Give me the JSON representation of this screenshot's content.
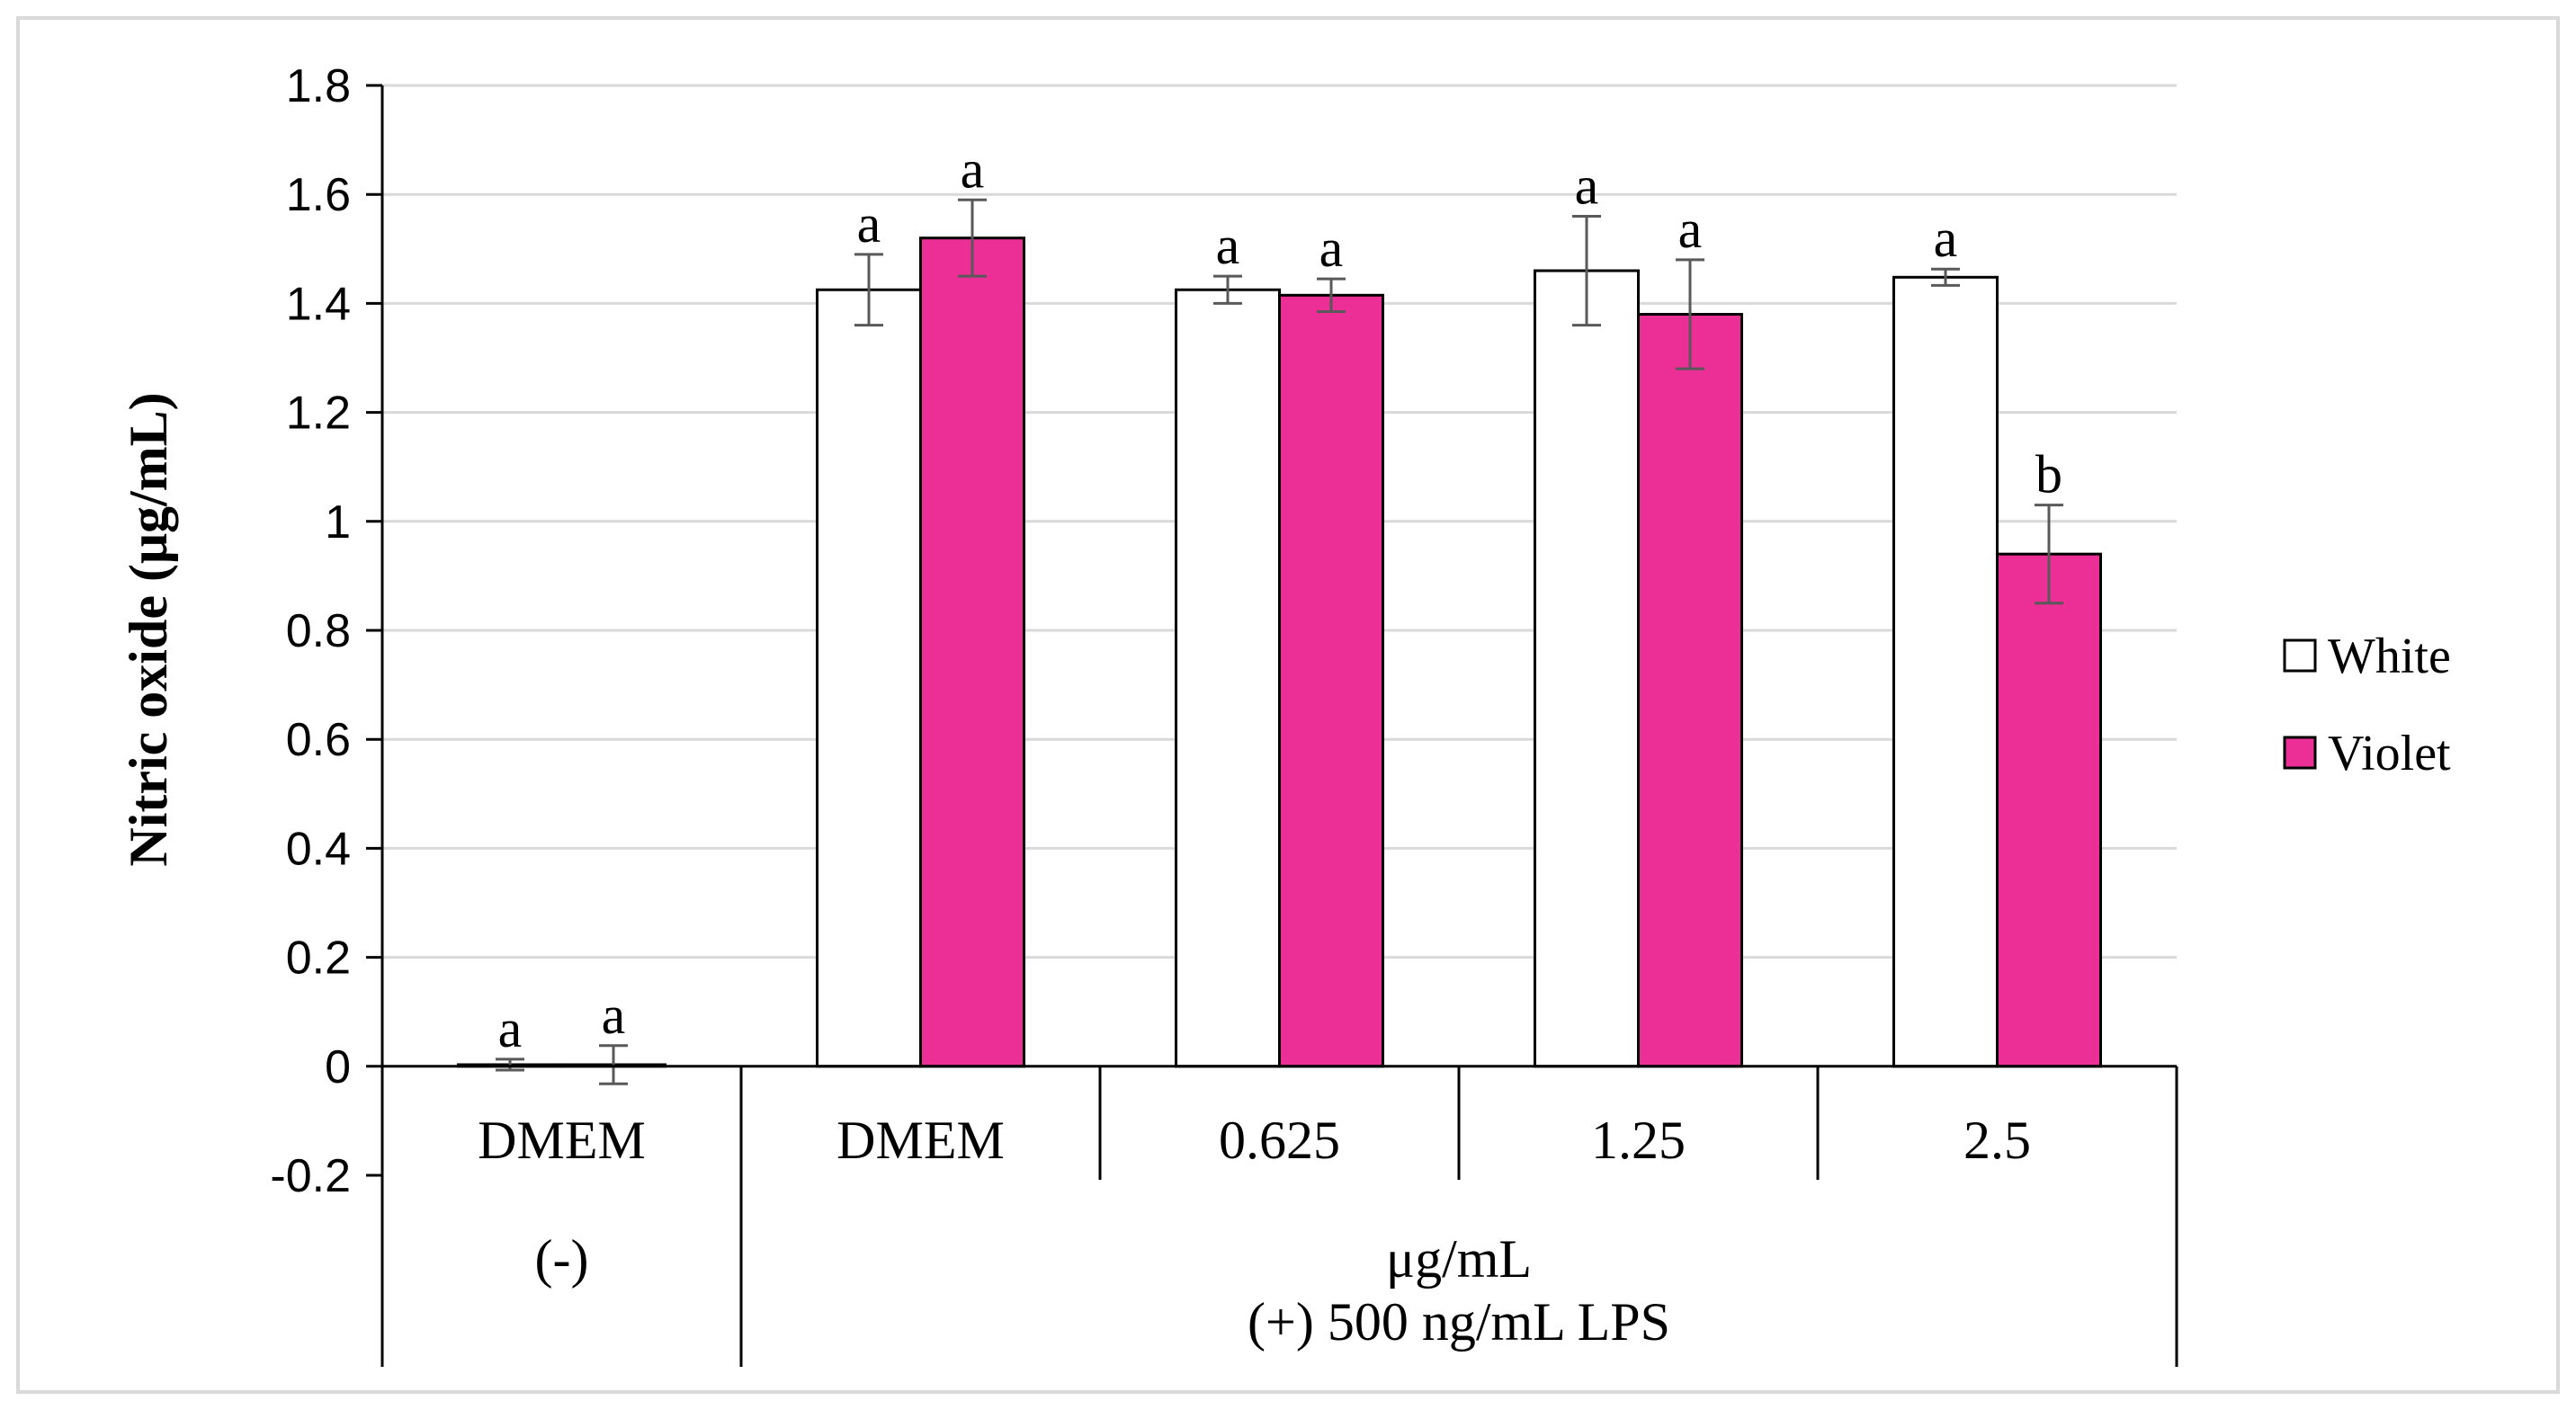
{
  "chart_data": {
    "type": "bar",
    "ylabel": "Nitric oxide (μg/mL)",
    "ylim": [
      -0.2,
      1.8
    ],
    "yticks": [
      -0.2,
      0,
      0.2,
      0.4,
      0.6,
      0.8,
      1,
      1.2,
      1.4,
      1.6,
      1.8
    ],
    "ytick_labels": [
      "-0.2",
      "0",
      "0.2",
      "0.4",
      "0.6",
      "0.8",
      "1",
      "1.2",
      "1.4",
      "1.6",
      "1.8"
    ],
    "grid": true,
    "categories": [
      "DMEM",
      "DMEM",
      "0.625",
      "1.25",
      "2.5"
    ],
    "groups": [
      {
        "label": "(-)",
        "span": 1
      },
      {
        "label": "μg/mL",
        "label2": "(+) 500 ng/mL  LPS",
        "span": 4
      }
    ],
    "series": [
      {
        "name": "White",
        "color": "#ffffff",
        "values": [
          0.003,
          1.425,
          1.425,
          1.46,
          1.448
        ],
        "errors": [
          0.01,
          0.065,
          0.025,
          0.1,
          0.015
        ],
        "significance": [
          "a",
          "a",
          "a",
          "a",
          "a"
        ]
      },
      {
        "name": "Violet",
        "color": "#ec2f96",
        "values": [
          0.003,
          1.52,
          1.415,
          1.38,
          0.94
        ],
        "errors": [
          0.035,
          0.07,
          0.03,
          0.1,
          0.09
        ],
        "significance": [
          "a",
          "a",
          "a",
          "a",
          "b"
        ]
      }
    ],
    "legend_position": "right"
  }
}
